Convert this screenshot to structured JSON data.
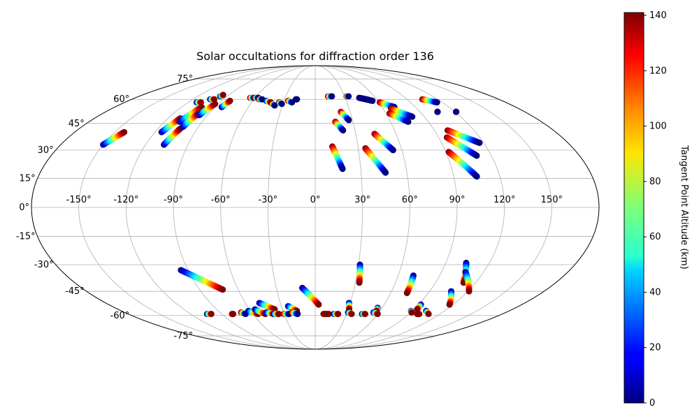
{
  "chart_data": {
    "type": "scatter",
    "projection": "mollweide",
    "title": "Solar occultations for diffraction order 136",
    "grid": true,
    "colormap": "jet",
    "colorbar": {
      "label": "Tangent Point Altitude (km)",
      "range": [
        0,
        141
      ],
      "ticks": [
        "0",
        "20",
        "40",
        "60",
        "80",
        "100",
        "120",
        "140"
      ],
      "tick_values": [
        0,
        20,
        40,
        60,
        80,
        100,
        120,
        140
      ],
      "placement": "right"
    },
    "x_ticks": {
      "values": [
        -150,
        -120,
        -90,
        -60,
        -30,
        0,
        30,
        60,
        90,
        120,
        150
      ],
      "labels": [
        "-150°",
        "-120°",
        "-90°",
        "-60°",
        "-30°",
        "0°",
        "30°",
        "60°",
        "90°",
        "120°",
        "150°"
      ]
    },
    "y_ticks": {
      "values": [
        75,
        60,
        45,
        30,
        15,
        0,
        -15,
        -30,
        -45,
        -60,
        -75
      ],
      "labels": [
        "75°",
        "60°",
        "45°",
        "30°",
        "15°",
        "0°",
        "-15°",
        "-30°",
        "-45°",
        "-60°",
        "-75°"
      ]
    },
    "tracks": [
      {
        "lon": [
          -150,
          -143
        ],
        "lat": [
          33,
          40
        ],
        "alt": [
          0,
          141
        ]
      },
      {
        "lon": [
          -115,
          -110
        ],
        "lat": [
          40,
          48
        ],
        "alt": [
          0,
          141
        ]
      },
      {
        "lon": [
          -108,
          -102
        ],
        "lat": [
          46,
          55
        ],
        "alt": [
          0,
          141
        ]
      },
      {
        "lon": [
          -107,
          -103
        ],
        "lat": [
          33,
          42
        ],
        "alt": [
          0,
          141
        ]
      },
      {
        "lon": [
          -102,
          -99
        ],
        "lat": [
          43,
          51
        ],
        "alt": [
          0,
          141
        ]
      },
      {
        "lon": [
          -97,
          -93
        ],
        "lat": [
          50,
          57
        ],
        "alt": [
          0,
          141
        ]
      },
      {
        "lon": [
          -84,
          -82
        ],
        "lat": [
          55,
          59
        ],
        "alt": [
          0,
          141
        ]
      },
      {
        "lon": [
          -112,
          -108
        ],
        "lat": [
          58,
          58
        ],
        "alt": [
          0,
          141
        ]
      },
      {
        "lon": [
          -103,
          -99
        ],
        "lat": [
          60,
          60
        ],
        "alt": [
          0,
          141
        ]
      },
      {
        "lon": [
          -97,
          -96
        ],
        "lat": [
          62,
          63
        ],
        "alt": [
          0,
          141
        ]
      },
      {
        "lon": [
          -65,
          -61
        ],
        "lat": [
          61,
          61
        ],
        "alt": [
          141,
          0
        ]
      },
      {
        "lon": [
          -60,
          -57
        ],
        "lat": [
          61,
          61
        ],
        "alt": [
          141,
          0
        ]
      },
      {
        "lon": [
          -55,
          -52
        ],
        "lat": [
          60,
          60
        ],
        "alt": [
          141,
          0
        ]
      },
      {
        "lon": [
          -47,
          -42
        ],
        "lat": [
          59,
          58
        ],
        "alt": [
          0,
          141
        ]
      },
      {
        "lon": [
          -40,
          -37
        ],
        "lat": [
          57,
          56
        ],
        "alt": [
          141,
          0
        ]
      },
      {
        "lon": [
          -34,
          -31
        ],
        "lat": [
          58,
          57
        ],
        "alt": [
          141,
          0
        ]
      },
      {
        "lon": [
          -26,
          -22
        ],
        "lat": [
          59,
          58
        ],
        "alt": [
          141,
          0
        ]
      },
      {
        "lon": [
          -19,
          -18
        ],
        "lat": [
          60,
          60
        ],
        "alt": [
          0,
          0
        ]
      },
      {
        "lon": [
          12,
          18
        ],
        "lat": [
          32,
          20
        ],
        "alt": [
          141,
          0
        ]
      },
      {
        "lon": [
          16,
          21
        ],
        "lat": [
          46,
          41
        ],
        "alt": [
          141,
          0
        ]
      },
      {
        "lon": [
          22,
          27
        ],
        "lat": [
          52,
          47
        ],
        "alt": [
          141,
          0
        ]
      },
      {
        "lon": [
          13,
          17
        ],
        "lat": [
          62,
          62
        ],
        "alt": [
          141,
          0
        ]
      },
      {
        "lon": [
          32,
          34
        ],
        "lat": [
          62,
          62
        ],
        "alt": [
          141,
          0
        ]
      },
      {
        "lon": [
          35,
          46
        ],
        "lat": [
          31,
          18
        ],
        "alt": [
          141,
          0
        ]
      },
      {
        "lon": [
          44,
          54
        ],
        "lat": [
          39,
          30
        ],
        "alt": [
          141,
          0
        ]
      },
      {
        "lon": [
          44,
          50
        ],
        "lat": [
          61,
          60
        ],
        "alt": [
          0,
          0
        ]
      },
      {
        "lon": [
          50,
          55
        ],
        "lat": [
          60,
          59
        ],
        "alt": [
          0,
          0
        ]
      },
      {
        "lon": [
          61,
          71
        ],
        "lat": [
          58,
          55
        ],
        "alt": [
          141,
          0
        ]
      },
      {
        "lon": [
          67,
          80
        ],
        "lat": [
          54,
          49
        ],
        "alt": [
          141,
          0
        ]
      },
      {
        "lon": [
          63,
          74
        ],
        "lat": [
          51,
          46
        ],
        "alt": [
          141,
          0
        ]
      },
      {
        "lon": [
          92,
          105
        ],
        "lat": [
          29,
          16
        ],
        "alt": [
          141,
          0
        ]
      },
      {
        "lon": [
          96,
          110
        ],
        "lat": [
          37,
          27
        ],
        "alt": [
          141,
          0
        ]
      },
      {
        "lon": [
          100,
          117
        ],
        "lat": [
          41,
          34
        ],
        "alt": [
          141,
          0
        ]
      },
      {
        "lon": [
          105,
          115
        ],
        "lat": [
          60,
          58
        ],
        "alt": [
          141,
          0
        ]
      },
      {
        "lon": [
          105,
          105
        ],
        "lat": [
          52,
          52
        ],
        "alt": [
          0,
          0
        ]
      },
      {
        "lon": [
          121,
          121
        ],
        "lat": [
          52,
          52
        ],
        "alt": [
          0,
          0
        ]
      },
      {
        "lon": [
          -95,
          -72
        ],
        "lat": [
          -33,
          -44
        ],
        "alt": [
          0,
          141
        ]
      },
      {
        "lon": [
          -10,
          3
        ],
        "lat": [
          -43,
          -53
        ],
        "alt": [
          0,
          141
        ]
      },
      {
        "lon": [
          31,
          33
        ],
        "lat": [
          -30,
          -40
        ],
        "alt": [
          0,
          141
        ]
      },
      {
        "lon": [
          71,
          73
        ],
        "lat": [
          -36,
          -46
        ],
        "alt": [
          0,
          141
        ]
      },
      {
        "lon": [
          104,
          111
        ],
        "lat": [
          -29,
          -40
        ],
        "alt": [
          0,
          141
        ]
      },
      {
        "lon": [
          107,
          121
        ],
        "lat": [
          -34,
          -45
        ],
        "alt": [
          0,
          141
        ]
      },
      {
        "lon": [
          107,
          117
        ],
        "lat": [
          -45,
          -53
        ],
        "alt": [
          0,
          141
        ]
      },
      {
        "lon": [
          -48,
          -37
        ],
        "lat": [
          -52,
          -56
        ],
        "alt": [
          0,
          141
        ]
      },
      {
        "lon": [
          -24,
          -17
        ],
        "lat": [
          -54,
          -57
        ],
        "alt": [
          0,
          141
        ]
      },
      {
        "lon": [
          29,
          31
        ],
        "lat": [
          -52,
          -56
        ],
        "alt": [
          0,
          141
        ]
      },
      {
        "lon": [
          92,
          93
        ],
        "lat": [
          -53,
          -56
        ],
        "alt": [
          0,
          141
        ]
      },
      {
        "lon": [
          56,
          57
        ],
        "lat": [
          -55,
          -57
        ],
        "alt": [
          0,
          141
        ]
      },
      {
        "lon": [
          -104,
          -100
        ],
        "lat": [
          -59,
          -59
        ],
        "alt": [
          0,
          141
        ]
      },
      {
        "lon": [
          -80,
          -79
        ],
        "lat": [
          -59,
          -59
        ],
        "alt": [
          141,
          141
        ]
      },
      {
        "lon": [
          -70,
          -67
        ],
        "lat": [
          -58,
          -59
        ],
        "alt": [
          141,
          0
        ]
      },
      {
        "lon": [
          -62,
          -55
        ],
        "lat": [
          -57,
          -59
        ],
        "alt": [
          0,
          141
        ]
      },
      {
        "lon": [
          -55,
          -48
        ],
        "lat": [
          -56,
          -59
        ],
        "alt": [
          0,
          141
        ]
      },
      {
        "lon": [
          -46,
          -40
        ],
        "lat": [
          -58,
          -59
        ],
        "alt": [
          0,
          141
        ]
      },
      {
        "lon": [
          -40,
          -35
        ],
        "lat": [
          -59,
          -59
        ],
        "alt": [
          0,
          141
        ]
      },
      {
        "lon": [
          -30,
          -25
        ],
        "lat": [
          -59,
          -59
        ],
        "alt": [
          141,
          0
        ]
      },
      {
        "lon": [
          -22,
          -17
        ],
        "lat": [
          -58,
          -59
        ],
        "alt": [
          141,
          0
        ]
      },
      {
        "lon": [
          8,
          13
        ],
        "lat": [
          -59,
          -59
        ],
        "alt": [
          141,
          141
        ]
      },
      {
        "lon": [
          18,
          22
        ],
        "lat": [
          -59,
          -59
        ],
        "alt": [
          0,
          141
        ]
      },
      {
        "lon": [
          31,
          35
        ],
        "lat": [
          -58,
          -59
        ],
        "alt": [
          0,
          141
        ]
      },
      {
        "lon": [
          45,
          48
        ],
        "lat": [
          -59,
          -59
        ],
        "alt": [
          0,
          141
        ]
      },
      {
        "lon": [
          55,
          60
        ],
        "lat": [
          -58,
          -59
        ],
        "alt": [
          0,
          141
        ]
      },
      {
        "lon": [
          89,
          91
        ],
        "lat": [
          -57,
          -58
        ],
        "alt": [
          0,
          141
        ]
      },
      {
        "lon": [
          98,
          100
        ],
        "lat": [
          -59,
          -59
        ],
        "alt": [
          141,
          141
        ]
      },
      {
        "lon": [
          103,
          109
        ],
        "lat": [
          -57,
          -59
        ],
        "alt": [
          0,
          141
        ]
      }
    ]
  }
}
